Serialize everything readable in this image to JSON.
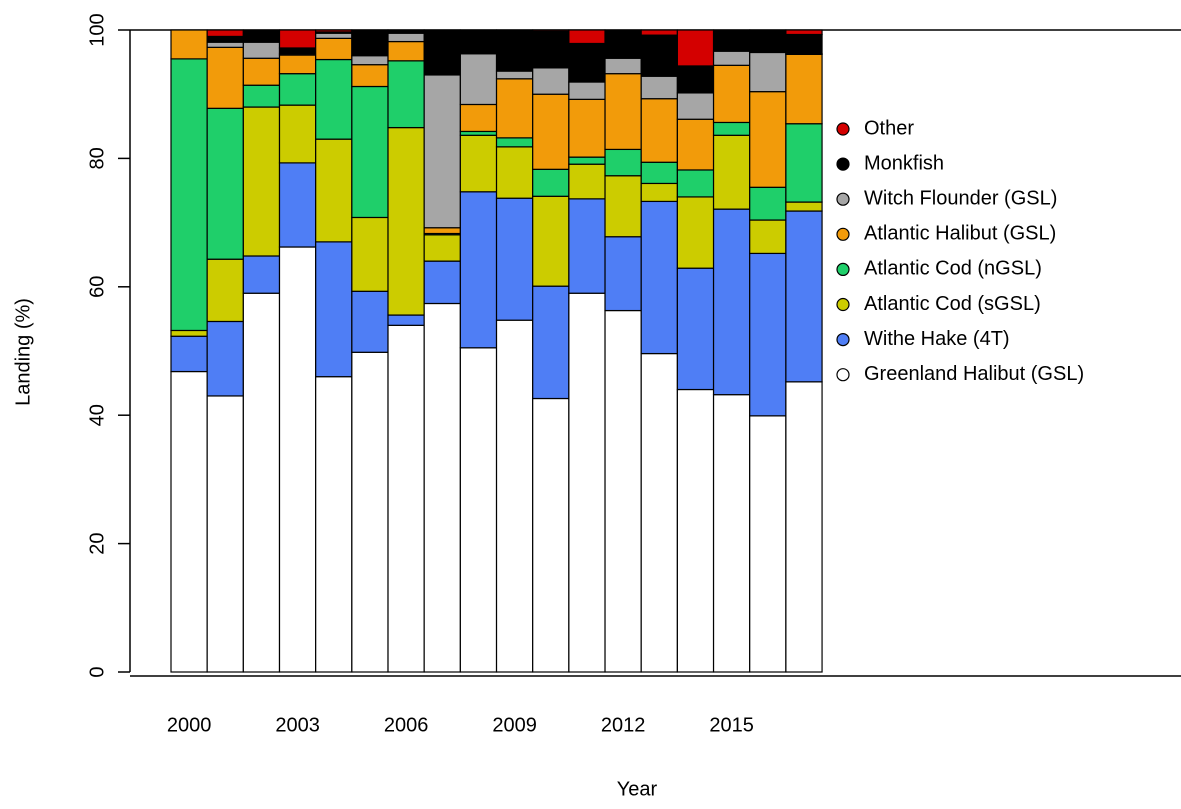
{
  "chart_data": {
    "type": "stacked_bar",
    "x_label": "Year",
    "y_label": "Landing (%)",
    "categories": [
      "2000",
      null,
      null,
      "2003",
      null,
      null,
      "2006",
      null,
      null,
      "2009",
      null,
      null,
      "2012",
      null,
      null,
      "2015",
      null,
      null
    ],
    "series": [
      {
        "name": "Greenland Halibut (GSL)",
        "color": "#ffffff",
        "values": [
          46.8,
          43,
          59,
          66.2,
          46,
          49.8,
          54,
          57.4,
          50.5,
          54.8,
          42.6,
          59,
          56.3,
          49.6,
          44,
          43.2,
          39.9,
          45.2
        ]
      },
      {
        "name": "Withe Hake (4T)",
        "color": "#4f7ef5",
        "values": [
          5.5,
          11.6,
          5.8,
          13.1,
          21,
          9.5,
          1.6,
          6.6,
          24.3,
          19,
          17.5,
          14.7,
          11.5,
          23.7,
          18.9,
          28.9,
          25.3,
          26.6
        ]
      },
      {
        "name": "Atlantic Cod (sGSL)",
        "color": "#cccc00",
        "values": [
          0.9,
          9.7,
          23.2,
          9,
          16,
          11.5,
          29.2,
          4.1,
          8.8,
          8,
          14,
          5.4,
          9.5,
          2.8,
          11.1,
          11.5,
          5.2,
          1.4
        ]
      },
      {
        "name": "Atlantic Cod (nGSL)",
        "color": "#1fcf6a",
        "values": [
          42.3,
          23.5,
          3.4,
          4.9,
          12.4,
          20.4,
          10.4,
          0.2,
          0.6,
          1.4,
          4.2,
          1.1,
          4.1,
          3.3,
          4.2,
          2,
          5.1,
          12.2
        ]
      },
      {
        "name": "Atlantic Halibut (GSL)",
        "color": "#f29b0a",
        "values": [
          4.5,
          9.5,
          4.2,
          2.9,
          3.3,
          3.4,
          3,
          0.9,
          4.2,
          9.2,
          11.7,
          9,
          11.8,
          9.9,
          7.9,
          8.9,
          14.9,
          10.8
        ]
      },
      {
        "name": "Witch Flounder (GSL)",
        "color": "#a6a6a6",
        "values": [
          0,
          0.8,
          2.5,
          0.2,
          0.8,
          1.4,
          1.3,
          23.8,
          7.9,
          1.2,
          4.1,
          2.7,
          2.4,
          3.5,
          4.1,
          2.2,
          6.1,
          0.1
        ]
      },
      {
        "name": "Monkfish",
        "color": "#000000",
        "values": [
          0,
          0.9,
          1.9,
          0.9,
          0.2,
          4,
          0.5,
          7,
          3.7,
          6.4,
          5.7,
          6,
          4.4,
          6.4,
          4.2,
          3.3,
          3.5,
          3
        ]
      },
      {
        "name": "Other",
        "color": "#d40000",
        "values": [
          0,
          1,
          0,
          2.8,
          0.3,
          0,
          0,
          0,
          0,
          0,
          0.2,
          2.1,
          0,
          0.8,
          5.6,
          0,
          0,
          0.7
        ]
      }
    ],
    "ylim": [
      0,
      100
    ],
    "yticks": [
      0,
      20,
      40,
      60,
      80,
      100
    ],
    "legend": "right"
  }
}
